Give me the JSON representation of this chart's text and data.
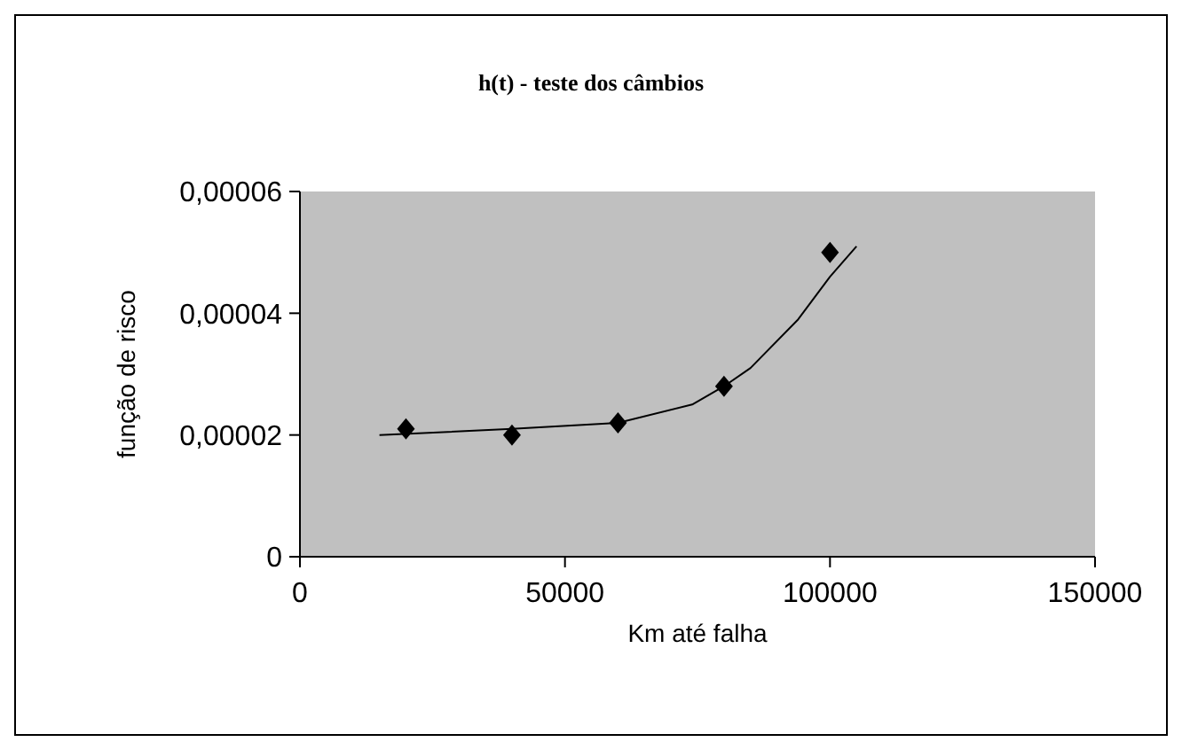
{
  "chart_data": {
    "type": "scatter",
    "title": "h(t) - teste dos câmbios",
    "xlabel": "Km até falha",
    "ylabel": "função de risco",
    "series": [
      {
        "type": "scatter",
        "color": "#000000",
        "marker": "diamond",
        "x": [
          20000,
          40000,
          60000,
          80000,
          100000
        ],
        "values": [
          2.1e-05,
          2e-05,
          2.2e-05,
          2.8e-05,
          5e-05
        ]
      },
      {
        "type": "line",
        "color": "#000000",
        "marker": "none",
        "x": [
          15000,
          40000,
          60000,
          74000,
          80000,
          85000,
          94000,
          100000,
          105000
        ],
        "values": [
          2e-05,
          2.1e-05,
          2.2e-05,
          2.5e-05,
          2.8e-05,
          3.1e-05,
          3.9e-05,
          4.6e-05,
          5.1e-05
        ]
      }
    ],
    "xlim": [
      0,
      150000
    ],
    "xticks": [
      0,
      50000,
      100000,
      150000
    ],
    "ylim": [
      0,
      6e-05
    ],
    "yticks": [
      0,
      {
        "value": 2e-05,
        "label": "0,00002"
      },
      {
        "value": 4e-05,
        "label": "0,00004"
      },
      {
        "value": 6e-05,
        "label": "0,00006"
      }
    ],
    "grid": false,
    "legend": false
  }
}
